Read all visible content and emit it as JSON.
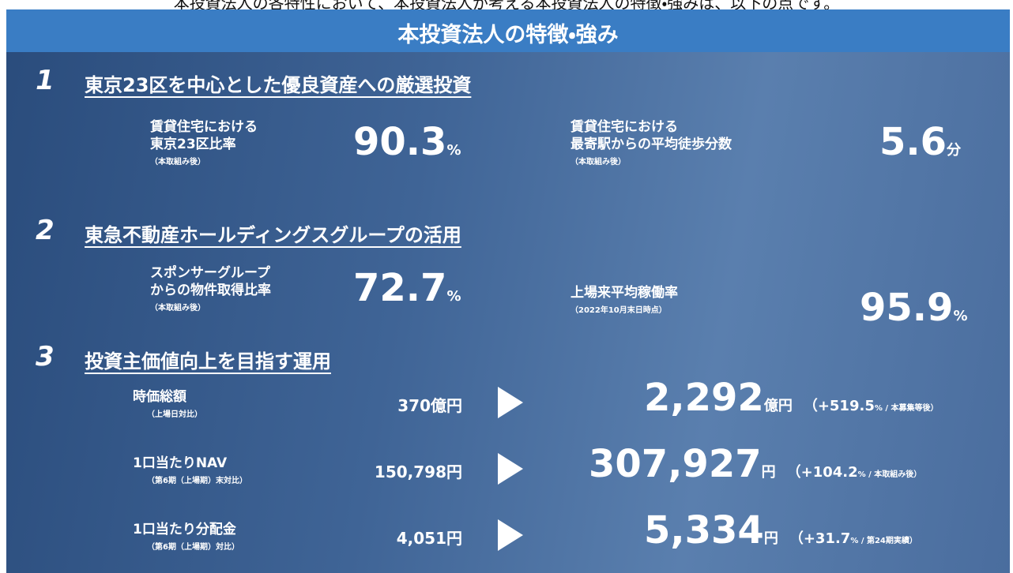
{
  "intro": "本投資法人の各特性において、本投資法人が考える本投資法人の特徴・強みは、以下の点です。",
  "header": {
    "title": "本投資法人の特徴・強み"
  },
  "sections": [
    {
      "number": "1",
      "title": "東京23区を中心とした優良資産への厳選投資",
      "items": [
        {
          "label": [
            "賃貸住宅における",
            "東京23区比率"
          ],
          "note": "（本取組み後）",
          "value": "90.3",
          "unit": "%"
        },
        {
          "label": [
            "賃貸住宅における",
            "最寄駅からの平均徒歩分数"
          ],
          "note": "（本取組み後）",
          "value": "5.6",
          "unit": "分"
        }
      ]
    },
    {
      "number": "2",
      "title": "東急不動産ホールディングスグループの活用",
      "items": [
        {
          "label": [
            "スポンサーグループ",
            "からの物件取得比率"
          ],
          "note": "（本取組み後）",
          "value": "72.7",
          "unit": "%"
        },
        {
          "label": [
            "上場来平均稼働率"
          ],
          "note": "（2022年10月末日時点）",
          "value": "95.9",
          "unit": "%"
        }
      ]
    },
    {
      "number": "3",
      "title": "投資主価値向上を目指す運用",
      "rows": [
        {
          "label": "時価総額",
          "note": "（上場日対比）",
          "before": "370億円",
          "after": "2,292",
          "after_unit": "億円",
          "change": "（+519.5",
          "change_unit": "% / 本募集等後）"
        },
        {
          "label": "1口当たりNAV",
          "note": "（第6期（上場期）末対比）",
          "before": "150,798円",
          "after": "307,927",
          "after_unit": "円",
          "change": "（+104.2",
          "change_unit": "% / 本取組み後）"
        },
        {
          "label": "1口当たり分配金",
          "note": "（第6期（上場期）対比）",
          "before": "4,051円",
          "after": "5,334",
          "after_unit": "円",
          "change": "（+31.7",
          "change_unit": "% / 第24期実績）"
        }
      ]
    }
  ]
}
